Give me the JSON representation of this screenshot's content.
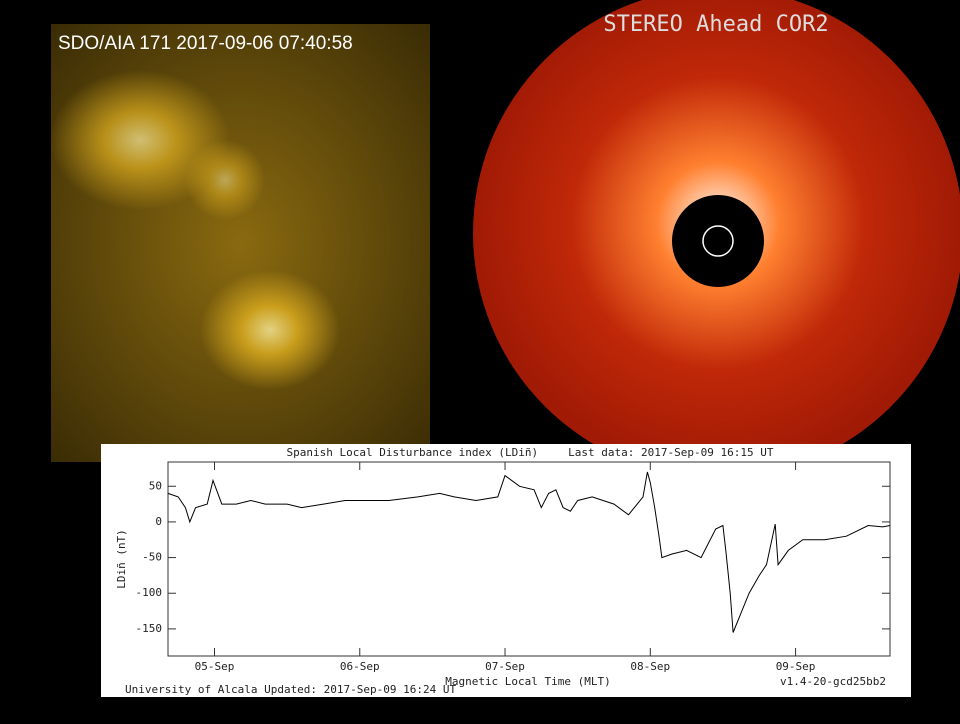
{
  "sdo_label": "SDO/AIA 171 2017-09-06 07:40:58",
  "stereo_label": "STEREO Ahead COR2",
  "chart_data": {
    "type": "line",
    "title": "Spanish Local Disturbance index (LDiñ)",
    "subtitle": "Last data: 2017-Sep-09   16:15 UT",
    "y_label": "LDiñ (nT)",
    "x_label": "Magnetic Local Time (MLT)",
    "footer": "University of Alcala   Updated: 2017-Sep-09   16:24 UT",
    "version": "v1.4-20-gcd25bb2",
    "xlim": [
      4.68,
      9.65
    ],
    "xticks": [
      {
        "value": 5,
        "label": "05-Sep"
      },
      {
        "value": 6,
        "label": "06-Sep"
      },
      {
        "value": 7,
        "label": "07-Sep"
      },
      {
        "value": 8,
        "label": "08-Sep"
      },
      {
        "value": 9,
        "label": "09-Sep"
      }
    ],
    "ylim": [
      -188,
      84
    ],
    "yticks": [
      50,
      0,
      -50,
      -100,
      -150
    ],
    "series": [
      {
        "color": "#000000",
        "x": [
          4.68,
          4.75,
          4.8,
          4.83,
          4.87,
          4.95,
          4.99,
          5.05,
          5.15,
          5.25,
          5.35,
          5.5,
          5.6,
          5.75,
          5.9,
          6.0,
          6.2,
          6.4,
          6.55,
          6.65,
          6.8,
          6.95,
          7.0,
          7.1,
          7.2,
          7.25,
          7.3,
          7.35,
          7.4,
          7.45,
          7.5,
          7.6,
          7.75,
          7.85,
          7.95,
          7.98,
          8.0,
          8.03,
          8.06,
          8.08,
          8.15,
          8.25,
          8.35,
          8.45,
          8.5,
          8.52,
          8.55,
          8.57,
          8.62,
          8.68,
          8.75,
          8.8,
          8.86,
          8.88,
          8.95,
          9.05,
          9.2,
          9.35,
          9.5,
          9.6,
          9.65
        ],
        "values": [
          40,
          35,
          20,
          0,
          20,
          25,
          58,
          25,
          25,
          30,
          25,
          25,
          20,
          25,
          30,
          30,
          30,
          35,
          40,
          35,
          30,
          35,
          65,
          50,
          45,
          20,
          40,
          45,
          20,
          15,
          30,
          35,
          25,
          10,
          35,
          70,
          55,
          20,
          -20,
          -50,
          -45,
          -40,
          -50,
          -10,
          -5,
          -40,
          -100,
          -155,
          -130,
          -100,
          -75,
          -60,
          -3,
          -60,
          -40,
          -25,
          -25,
          -20,
          -5,
          -7,
          -5
        ]
      }
    ]
  }
}
